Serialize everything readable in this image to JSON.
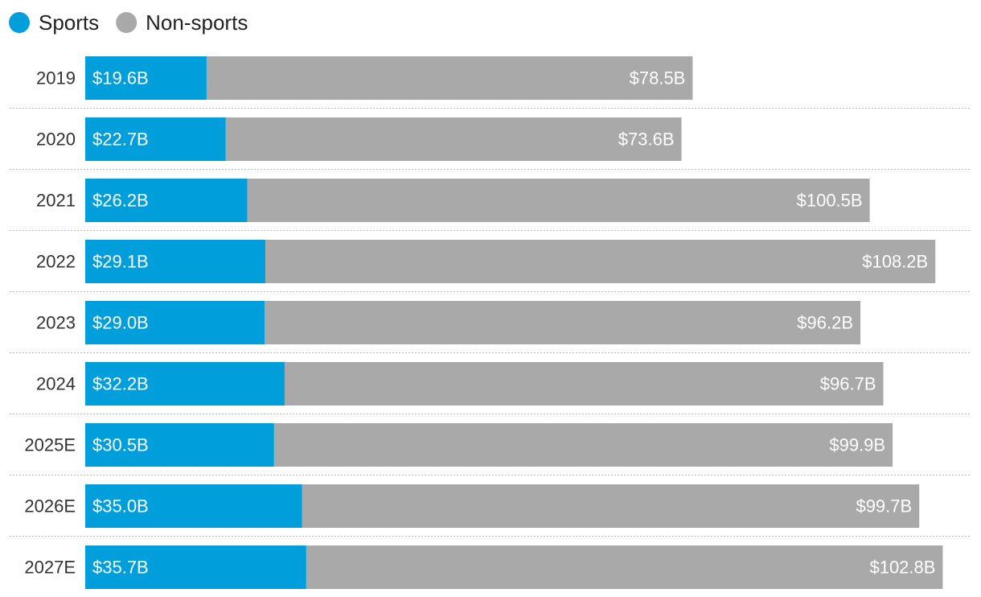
{
  "chart_data": {
    "type": "bar",
    "orientation": "horizontal",
    "stacked": true,
    "categories": [
      "2019",
      "2020",
      "2021",
      "2022",
      "2023",
      "2024",
      "2025E",
      "2026E",
      "2027E"
    ],
    "series": [
      {
        "name": "Sports",
        "color": "#009fdb",
        "values": [
          19.6,
          22.7,
          26.2,
          29.1,
          29.0,
          32.2,
          30.5,
          35.0,
          35.7
        ],
        "labels": [
          "$19.6B",
          "$22.7B",
          "$26.2B",
          "$29.1B",
          "$29.0B",
          "$32.2B",
          "$30.5B",
          "$35.0B",
          "$35.7B"
        ]
      },
      {
        "name": "Non-sports",
        "color": "#a9a9a9",
        "values": [
          78.5,
          73.6,
          100.5,
          108.2,
          96.2,
          96.7,
          99.9,
          99.7,
          102.8
        ],
        "labels": [
          "$78.5B",
          "$73.6B",
          "$100.5B",
          "$108.2B",
          "$96.2B",
          "$96.7B",
          "$99.9B",
          "$99.7B",
          "$102.8B"
        ]
      }
    ],
    "legend_position": "top-left",
    "grid": false
  }
}
